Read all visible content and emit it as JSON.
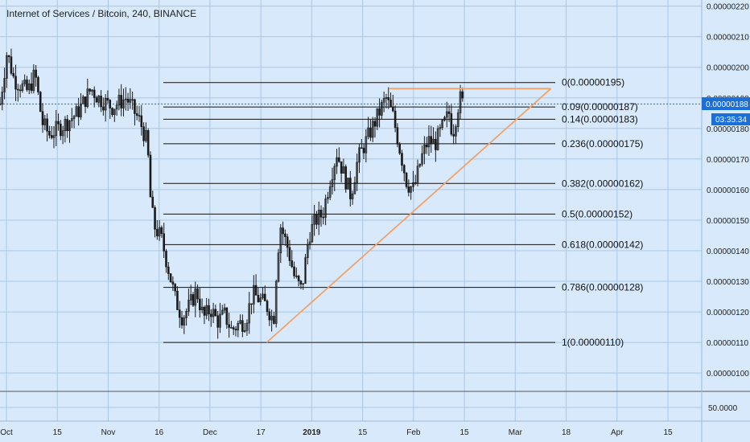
{
  "chart_data": {
    "type": "candlestick",
    "title": "Internet of Services / Bitcoin, 240, BINANCE",
    "colors": {
      "background": "#d7e9fa",
      "grid": "#a9c7e6",
      "candle": "#1a1a1a",
      "trendline": "#f0a36a",
      "fib_line": "#111111",
      "price_tag": "#1b6fd8",
      "price_tag_text": "#ffffff"
    },
    "y_axis": {
      "min": 9.4e-07,
      "max": 2.22e-06,
      "ticks": [
        "0.00000220",
        "0.00000210",
        "0.00000200",
        "0.00000190",
        "0.00000180",
        "0.00000170",
        "0.00000160",
        "0.00000150",
        "0.00000140",
        "0.00000130",
        "0.00000120",
        "0.00000110",
        "0.00000100"
      ]
    },
    "oscillator": {
      "tick": "50.0000"
    },
    "x_axis": {
      "ticks": [
        "Oct",
        "15",
        "Nov",
        "16",
        "Dec",
        "17",
        "2019",
        "15",
        "Feb",
        "15",
        "Mar",
        "18",
        "Apr",
        "15"
      ],
      "bold_tick": "2019"
    },
    "current_price": {
      "value": 1.88e-06,
      "label": "0.00000188",
      "countdown": "03:35:34"
    },
    "fibonacci": [
      {
        "label": "0(0.00000195)",
        "value": 1.95e-06
      },
      {
        "label": "0.09(0.00000187)",
        "value": 1.87e-06
      },
      {
        "label": "0.14(0.00000183)",
        "value": 1.83e-06
      },
      {
        "label": "0.236(0.00000175)",
        "value": 1.75e-06
      },
      {
        "label": "0.382(0.00000162)",
        "value": 1.62e-06
      },
      {
        "label": "0.5(0.00000152)",
        "value": 1.52e-06
      },
      {
        "label": "0.618(0.00000142)",
        "value": 1.42e-06
      },
      {
        "label": "0.786(0.00000128)",
        "value": 1.28e-06
      },
      {
        "label": "1(0.00000110)",
        "value": 1.1e-06
      }
    ],
    "price_path": [
      [
        0,
        1.88e-06
      ],
      [
        0.01,
        2.05e-06
      ],
      [
        0.02,
        1.96e-06
      ],
      [
        0.04,
        1.92e-06
      ],
      [
        0.05,
        1.98e-06
      ],
      [
        0.06,
        1.82e-06
      ],
      [
        0.07,
        1.78e-06
      ],
      [
        0.09,
        1.81e-06
      ],
      [
        0.11,
        1.85e-06
      ],
      [
        0.13,
        1.93e-06
      ],
      [
        0.14,
        1.9e-06
      ],
      [
        0.16,
        1.87e-06
      ],
      [
        0.18,
        1.9e-06
      ],
      [
        0.19,
        1.86e-06
      ],
      [
        0.2,
        1.82e-06
      ],
      [
        0.21,
        1.75e-06
      ],
      [
        0.215,
        1.55e-06
      ],
      [
        0.22,
        1.48e-06
      ],
      [
        0.23,
        1.44e-06
      ],
      [
        0.24,
        1.34e-06
      ],
      [
        0.25,
        1.24e-06
      ],
      [
        0.26,
        1.18e-06
      ],
      [
        0.27,
        1.22e-06
      ],
      [
        0.28,
        1.27e-06
      ],
      [
        0.29,
        1.18e-06
      ],
      [
        0.3,
        1.21e-06
      ],
      [
        0.31,
        1.17e-06
      ],
      [
        0.32,
        1.19e-06
      ],
      [
        0.33,
        1.14e-06
      ],
      [
        0.34,
        1.16e-06
      ],
      [
        0.35,
        1.17e-06
      ],
      [
        0.36,
        1.26e-06
      ],
      [
        0.37,
        1.24e-06
      ],
      [
        0.38,
        1.22e-06
      ],
      [
        0.39,
        1.17e-06
      ],
      [
        0.395,
        1.38e-06
      ],
      [
        0.4,
        1.48e-06
      ],
      [
        0.41,
        1.41e-06
      ],
      [
        0.42,
        1.31e-06
      ],
      [
        0.43,
        1.27e-06
      ],
      [
        0.44,
        1.45e-06
      ],
      [
        0.45,
        1.5e-06
      ],
      [
        0.46,
        1.52e-06
      ],
      [
        0.47,
        1.63e-06
      ],
      [
        0.48,
        1.72e-06
      ],
      [
        0.49,
        1.65e-06
      ],
      [
        0.5,
        1.58e-06
      ],
      [
        0.51,
        1.7e-06
      ],
      [
        0.52,
        1.75e-06
      ],
      [
        0.53,
        1.8e-06
      ],
      [
        0.54,
        1.85e-06
      ],
      [
        0.55,
        1.9e-06
      ],
      [
        0.56,
        1.84e-06
      ],
      [
        0.57,
        1.73e-06
      ],
      [
        0.58,
        1.62e-06
      ],
      [
        0.59,
        1.6e-06
      ],
      [
        0.6,
        1.7e-06
      ],
      [
        0.61,
        1.76e-06
      ],
      [
        0.62,
        1.75e-06
      ],
      [
        0.63,
        1.8e-06
      ],
      [
        0.64,
        1.85e-06
      ],
      [
        0.645,
        1.78e-06
      ],
      [
        0.65,
        1.84e-06
      ],
      [
        0.655,
        1.9e-06
      ],
      [
        0.66,
        1.88e-06
      ]
    ],
    "trendlines": [
      {
        "from": [
          0.38,
          1.1e-06
        ],
        "to": [
          0.785,
          1.93e-06
        ]
      },
      {
        "from": [
          0.555,
          1.93e-06
        ],
        "to": [
          0.785,
          1.93e-06
        ]
      }
    ]
  }
}
